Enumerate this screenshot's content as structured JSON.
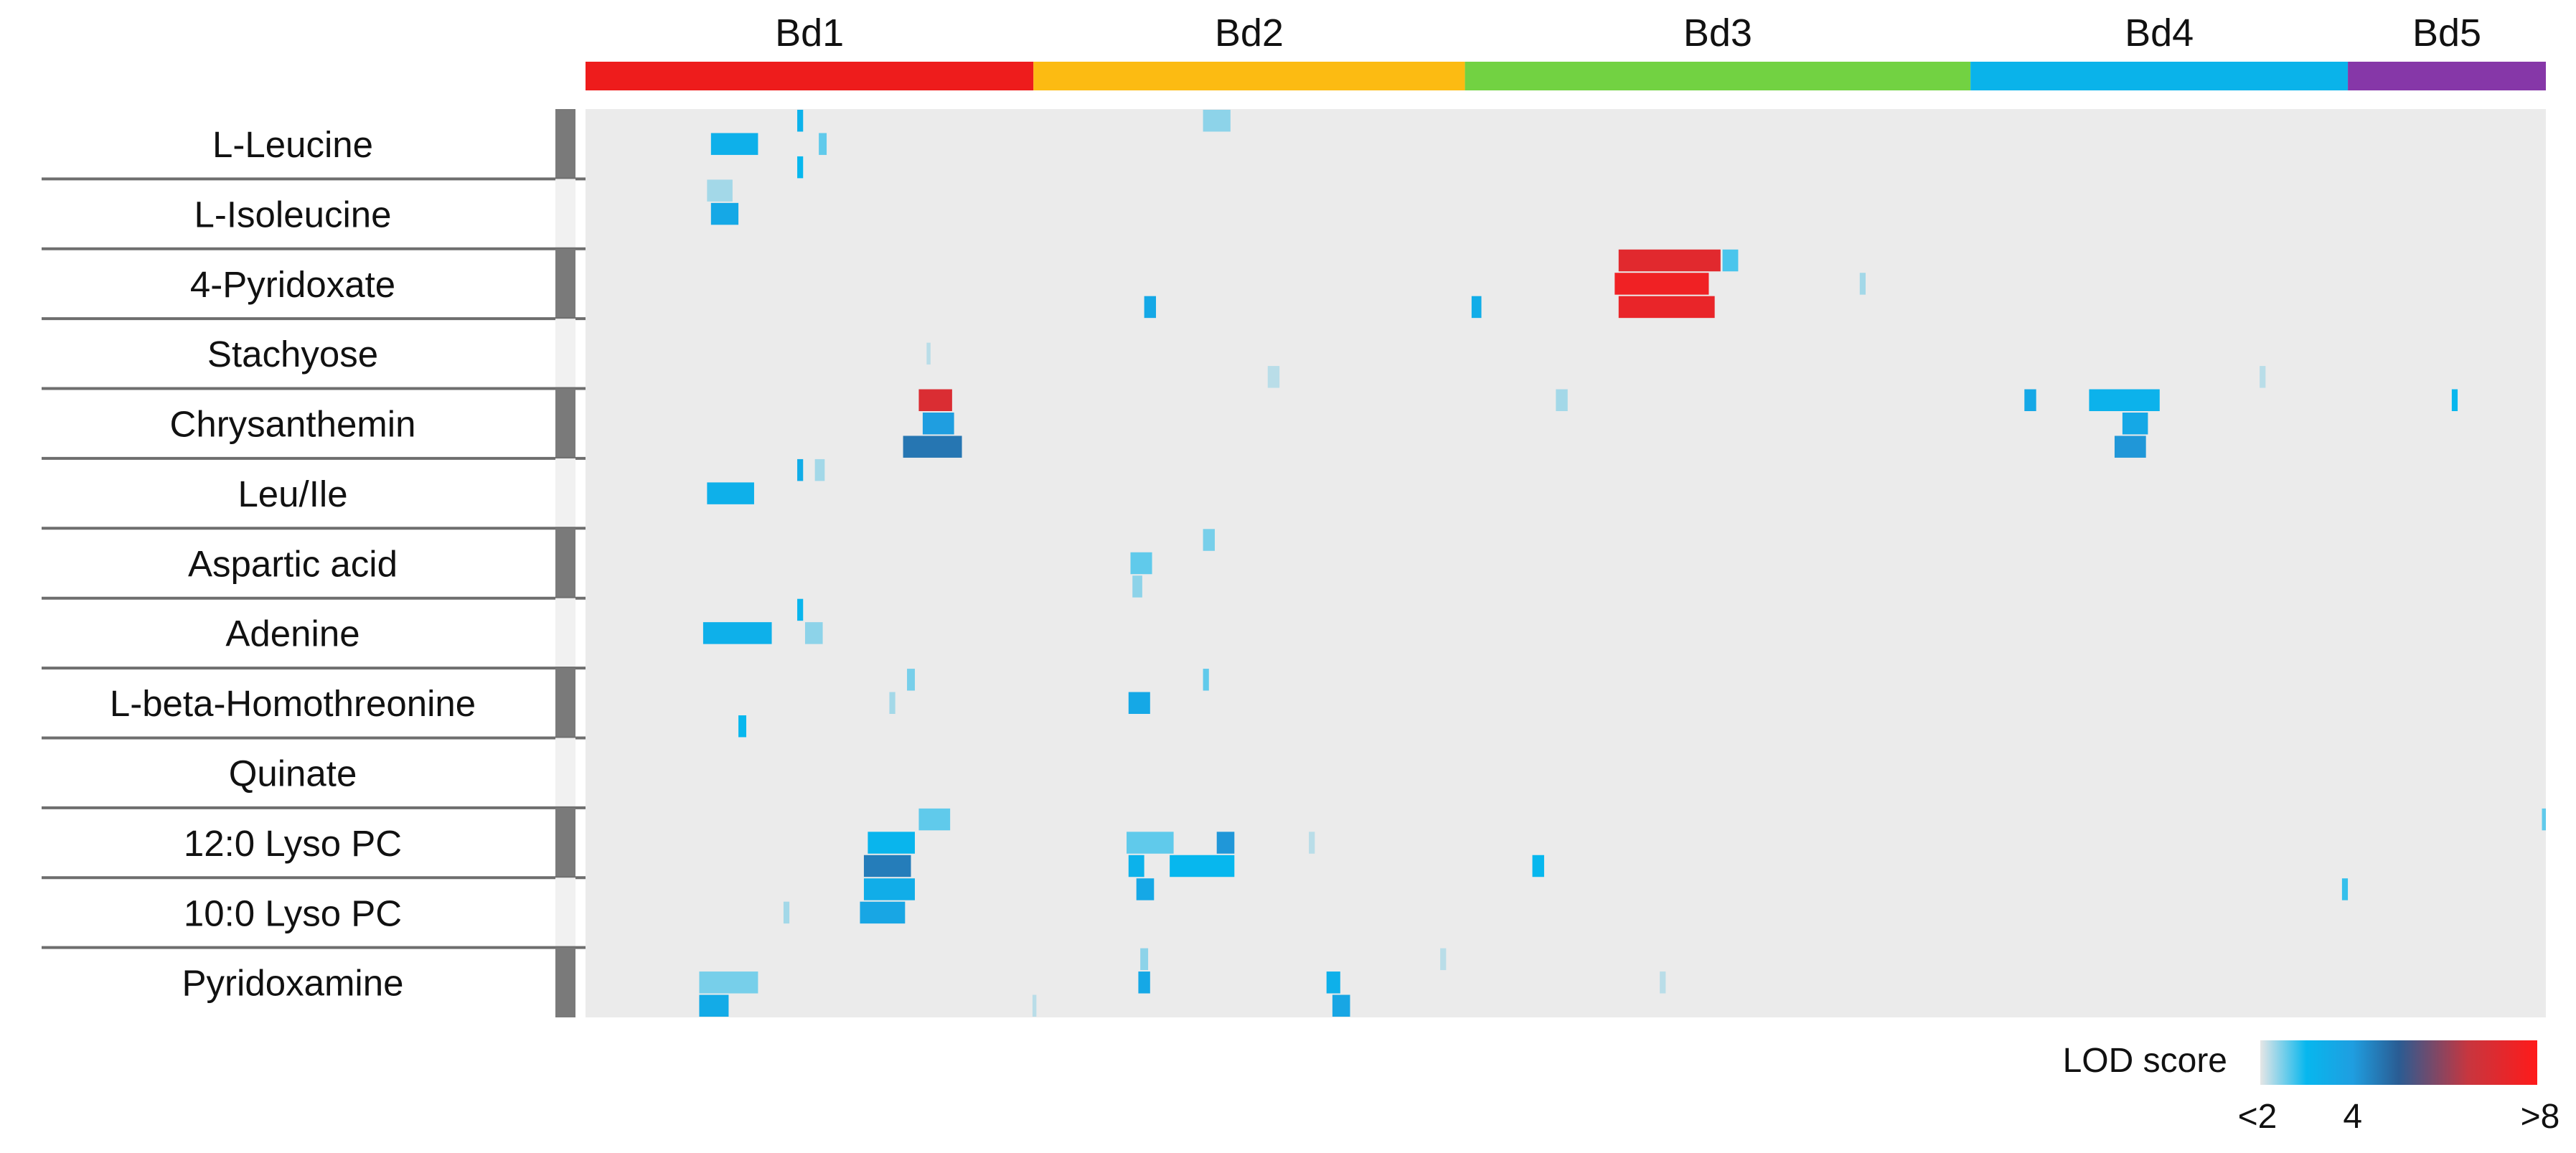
{
  "chart_data": {
    "type": "heatmap",
    "title": "",
    "chromosomes": [
      {
        "label": "Bd1",
        "color": "#ee1c1c",
        "span": [
          0.0,
          0.2285
        ]
      },
      {
        "label": "Bd2",
        "color": "#fcbb12",
        "span": [
          0.2285,
          0.4486
        ]
      },
      {
        "label": "Bd3",
        "color": "#72d242",
        "span": [
          0.4486,
          0.7065
        ]
      },
      {
        "label": "Bd4",
        "color": "#0ab3ea",
        "span": [
          0.7065,
          0.899
        ]
      },
      {
        "label": "Bd5",
        "color": "#8637a8",
        "span": [
          0.899,
          1.0
        ]
      }
    ],
    "metabolites": [
      "L-Leucine",
      "L-Isoleucine",
      "4-Pyridoxate",
      "Stachyose",
      "Chrysanthemin",
      "Leu/Ile",
      "Aspartic acid",
      "Adenine",
      "L-beta-Homothreonine",
      "Quinate",
      "12:0 Lyso PC",
      "10:0 Lyso PC",
      "Pyridoxamine"
    ],
    "group_shading": [
      "dark",
      "light",
      "dark",
      "light",
      "dark",
      "light",
      "dark",
      "light",
      "dark",
      "light",
      "dark",
      "light",
      "dark"
    ],
    "legend": {
      "title": "LOD score",
      "tick_labels": [
        "<2",
        "4",
        ">8"
      ],
      "stops": [
        {
          "lod": 2,
          "color": "#e6e6e6"
        },
        {
          "lod": 3,
          "color": "#07b7ee"
        },
        {
          "lod": 4,
          "color": "#1f9ee0"
        },
        {
          "lod": 5,
          "color": "#2a5c93"
        },
        {
          "lod": 6.5,
          "color": "#c7363f"
        },
        {
          "lod": 8,
          "color": "#ff1a1a"
        }
      ]
    },
    "background_color": "#ebebeb",
    "hits": [
      {
        "metabolite": "L-Leucine",
        "sub": 0,
        "pos": 0.108,
        "width": 0.003,
        "lod": 3.2
      },
      {
        "metabolite": "L-Leucine",
        "sub": 0,
        "pos": 0.315,
        "width": 0.014,
        "lod": 2.4
      },
      {
        "metabolite": "L-Leucine",
        "sub": 1,
        "pos": 0.064,
        "width": 0.024,
        "lod": 3.3
      },
      {
        "metabolite": "L-Leucine",
        "sub": 1,
        "pos": 0.119,
        "width": 0.004,
        "lod": 2.6
      },
      {
        "metabolite": "L-Leucine",
        "sub": 2,
        "pos": 0.108,
        "width": 0.003,
        "lod": 3.0
      },
      {
        "metabolite": "L-Isoleucine",
        "sub": 0,
        "pos": 0.062,
        "width": 0.013,
        "lod": 2.3
      },
      {
        "metabolite": "L-Isoleucine",
        "sub": 1,
        "pos": 0.064,
        "width": 0.014,
        "lod": 3.6
      },
      {
        "metabolite": "4-Pyridoxate",
        "sub": 0,
        "pos": 0.527,
        "width": 0.052,
        "lod": 7.2
      },
      {
        "metabolite": "4-Pyridoxate",
        "sub": 0,
        "pos": 0.58,
        "width": 0.008,
        "lod": 2.7
      },
      {
        "metabolite": "4-Pyridoxate",
        "sub": 1,
        "pos": 0.525,
        "width": 0.048,
        "lod": 7.6
      },
      {
        "metabolite": "4-Pyridoxate",
        "sub": 1,
        "pos": 0.65,
        "width": 0.003,
        "lod": 2.3
      },
      {
        "metabolite": "4-Pyridoxate",
        "sub": 2,
        "pos": 0.527,
        "width": 0.049,
        "lod": 7.4
      },
      {
        "metabolite": "4-Pyridoxate",
        "sub": 2,
        "pos": 0.285,
        "width": 0.006,
        "lod": 3.6
      },
      {
        "metabolite": "4-Pyridoxate",
        "sub": 2,
        "pos": 0.452,
        "width": 0.005,
        "lod": 3.4
      },
      {
        "metabolite": "Stachyose",
        "sub": 1,
        "pos": 0.174,
        "width": 0.002,
        "lod": 2.2
      },
      {
        "metabolite": "Stachyose",
        "sub": 2,
        "pos": 0.348,
        "width": 0.006,
        "lod": 2.2
      },
      {
        "metabolite": "Stachyose",
        "sub": 2,
        "pos": 0.854,
        "width": 0.003,
        "lod": 2.2
      },
      {
        "metabolite": "Chrysanthemin",
        "sub": 0,
        "pos": 0.17,
        "width": 0.017,
        "lod": 7.0
      },
      {
        "metabolite": "Chrysanthemin",
        "sub": 0,
        "pos": 0.495,
        "width": 0.006,
        "lod": 2.3
      },
      {
        "metabolite": "Chrysanthemin",
        "sub": 0,
        "pos": 0.734,
        "width": 0.006,
        "lod": 3.6
      },
      {
        "metabolite": "Chrysanthemin",
        "sub": 0,
        "pos": 0.767,
        "width": 0.036,
        "lod": 3.2
      },
      {
        "metabolite": "Chrysanthemin",
        "sub": 0,
        "pos": 0.952,
        "width": 0.003,
        "lod": 3.0
      },
      {
        "metabolite": "Chrysanthemin",
        "sub": 1,
        "pos": 0.172,
        "width": 0.016,
        "lod": 4.0
      },
      {
        "metabolite": "Chrysanthemin",
        "sub": 1,
        "pos": 0.784,
        "width": 0.013,
        "lod": 3.6
      },
      {
        "metabolite": "Chrysanthemin",
        "sub": 2,
        "pos": 0.162,
        "width": 0.03,
        "lod": 4.6
      },
      {
        "metabolite": "Chrysanthemin",
        "sub": 2,
        "pos": 0.78,
        "width": 0.016,
        "lod": 4.1
      },
      {
        "metabolite": "Leu/Ile",
        "sub": 0,
        "pos": 0.108,
        "width": 0.003,
        "lod": 3.4
      },
      {
        "metabolite": "Leu/Ile",
        "sub": 0,
        "pos": 0.117,
        "width": 0.005,
        "lod": 2.3
      },
      {
        "metabolite": "Leu/Ile",
        "sub": 1,
        "pos": 0.062,
        "width": 0.024,
        "lod": 3.3
      },
      {
        "metabolite": "Aspartic acid",
        "sub": 0,
        "pos": 0.315,
        "width": 0.006,
        "lod": 2.5
      },
      {
        "metabolite": "Aspartic acid",
        "sub": 1,
        "pos": 0.278,
        "width": 0.011,
        "lod": 2.6
      },
      {
        "metabolite": "Aspartic acid",
        "sub": 2,
        "pos": 0.279,
        "width": 0.005,
        "lod": 2.4
      },
      {
        "metabolite": "Adenine",
        "sub": 0,
        "pos": 0.108,
        "width": 0.003,
        "lod": 3.1
      },
      {
        "metabolite": "Adenine",
        "sub": 1,
        "pos": 0.06,
        "width": 0.035,
        "lod": 3.3
      },
      {
        "metabolite": "Adenine",
        "sub": 1,
        "pos": 0.112,
        "width": 0.009,
        "lod": 2.4
      },
      {
        "metabolite": "L-beta-Homothreonine",
        "sub": 0,
        "pos": 0.164,
        "width": 0.004,
        "lod": 2.5
      },
      {
        "metabolite": "L-beta-Homothreonine",
        "sub": 0,
        "pos": 0.315,
        "width": 0.003,
        "lod": 2.6
      },
      {
        "metabolite": "L-beta-Homothreonine",
        "sub": 1,
        "pos": 0.277,
        "width": 0.011,
        "lod": 3.6
      },
      {
        "metabolite": "L-beta-Homothreonine",
        "sub": 1,
        "pos": 0.155,
        "width": 0.003,
        "lod": 2.3
      },
      {
        "metabolite": "L-beta-Homothreonine",
        "sub": 2,
        "pos": 0.078,
        "width": 0.004,
        "lod": 3.0
      },
      {
        "metabolite": "12:0 Lyso PC",
        "sub": 0,
        "pos": 0.17,
        "width": 0.016,
        "lod": 2.6
      },
      {
        "metabolite": "12:0 Lyso PC",
        "sub": 1,
        "pos": 0.144,
        "width": 0.024,
        "lod": 3.1
      },
      {
        "metabolite": "12:0 Lyso PC",
        "sub": 1,
        "pos": 0.276,
        "width": 0.024,
        "lod": 2.6
      },
      {
        "metabolite": "12:0 Lyso PC",
        "sub": 1,
        "pos": 0.322,
        "width": 0.009,
        "lod": 4.1
      },
      {
        "metabolite": "12:0 Lyso PC",
        "sub": 1,
        "pos": 0.369,
        "width": 0.003,
        "lod": 2.2
      },
      {
        "metabolite": "12:0 Lyso PC",
        "sub": 2,
        "pos": 0.142,
        "width": 0.024,
        "lod": 4.5
      },
      {
        "metabolite": "12:0 Lyso PC",
        "sub": 2,
        "pos": 0.277,
        "width": 0.008,
        "lod": 3.2
      },
      {
        "metabolite": "12:0 Lyso PC",
        "sub": 2,
        "pos": 0.298,
        "width": 0.033,
        "lod": 3.0
      },
      {
        "metabolite": "12:0 Lyso PC",
        "sub": 2,
        "pos": 0.483,
        "width": 0.006,
        "lod": 3.0
      },
      {
        "metabolite": "12:0 Lyso PC",
        "sub": 0,
        "pos": 0.998,
        "width": 0.002,
        "lod": 2.6
      },
      {
        "metabolite": "10:0 Lyso PC",
        "sub": 0,
        "pos": 0.142,
        "width": 0.026,
        "lod": 3.4
      },
      {
        "metabolite": "10:0 Lyso PC",
        "sub": 0,
        "pos": 0.281,
        "width": 0.009,
        "lod": 3.6
      },
      {
        "metabolite": "10:0 Lyso PC",
        "sub": 0,
        "pos": 0.896,
        "width": 0.003,
        "lod": 2.8
      },
      {
        "metabolite": "10:0 Lyso PC",
        "sub": 1,
        "pos": 0.14,
        "width": 0.023,
        "lod": 3.7
      },
      {
        "metabolite": "10:0 Lyso PC",
        "sub": 1,
        "pos": 0.101,
        "width": 0.003,
        "lod": 2.3
      },
      {
        "metabolite": "Pyridoxamine",
        "sub": 0,
        "pos": 0.283,
        "width": 0.004,
        "lod": 2.4
      },
      {
        "metabolite": "Pyridoxamine",
        "sub": 0,
        "pos": 0.436,
        "width": 0.003,
        "lod": 2.2
      },
      {
        "metabolite": "Pyridoxamine",
        "sub": 1,
        "pos": 0.058,
        "width": 0.03,
        "lod": 2.5
      },
      {
        "metabolite": "Pyridoxamine",
        "sub": 1,
        "pos": 0.282,
        "width": 0.006,
        "lod": 3.6
      },
      {
        "metabolite": "Pyridoxamine",
        "sub": 1,
        "pos": 0.378,
        "width": 0.007,
        "lod": 3.3
      },
      {
        "metabolite": "Pyridoxamine",
        "sub": 1,
        "pos": 0.548,
        "width": 0.003,
        "lod": 2.2
      },
      {
        "metabolite": "Pyridoxamine",
        "sub": 2,
        "pos": 0.058,
        "width": 0.015,
        "lod": 3.5
      },
      {
        "metabolite": "Pyridoxamine",
        "sub": 2,
        "pos": 0.381,
        "width": 0.009,
        "lod": 3.7
      },
      {
        "metabolite": "Pyridoxamine",
        "sub": 2,
        "pos": 0.228,
        "width": 0.002,
        "lod": 2.2
      }
    ]
  }
}
